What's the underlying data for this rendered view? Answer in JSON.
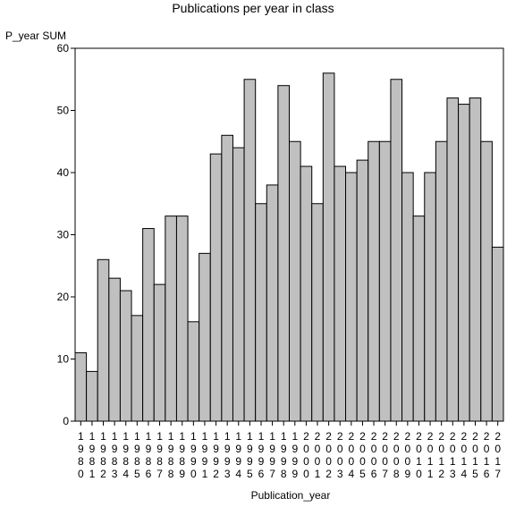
{
  "chart_data": {
    "type": "bar",
    "title": "Publications per year in class",
    "ylabel": "P_year SUM",
    "xlabel": "Publication_year",
    "ylim": [
      0,
      60
    ],
    "yticks": [
      0,
      10,
      20,
      30,
      40,
      50,
      60
    ],
    "grid": false,
    "bar_color": "#c0c0c0",
    "categories": [
      "1980",
      "1981",
      "1982",
      "1983",
      "1984",
      "1985",
      "1986",
      "1987",
      "1988",
      "1989",
      "1990",
      "1991",
      "1992",
      "1993",
      "1994",
      "1995",
      "1996",
      "1997",
      "1998",
      "1999",
      "2000",
      "2001",
      "2002",
      "2003",
      "2004",
      "2005",
      "2006",
      "2007",
      "2008",
      "2009",
      "2010",
      "2011",
      "2012",
      "2013",
      "2014",
      "2015",
      "2016",
      "2017"
    ],
    "values": [
      11,
      8,
      26,
      23,
      21,
      17,
      31,
      22,
      33,
      33,
      16,
      27,
      43,
      46,
      44,
      55,
      35,
      38,
      54,
      45,
      41,
      35,
      56,
      41,
      40,
      42,
      45,
      45,
      55,
      40,
      33,
      40,
      45,
      52,
      51,
      52,
      45,
      28
    ]
  }
}
